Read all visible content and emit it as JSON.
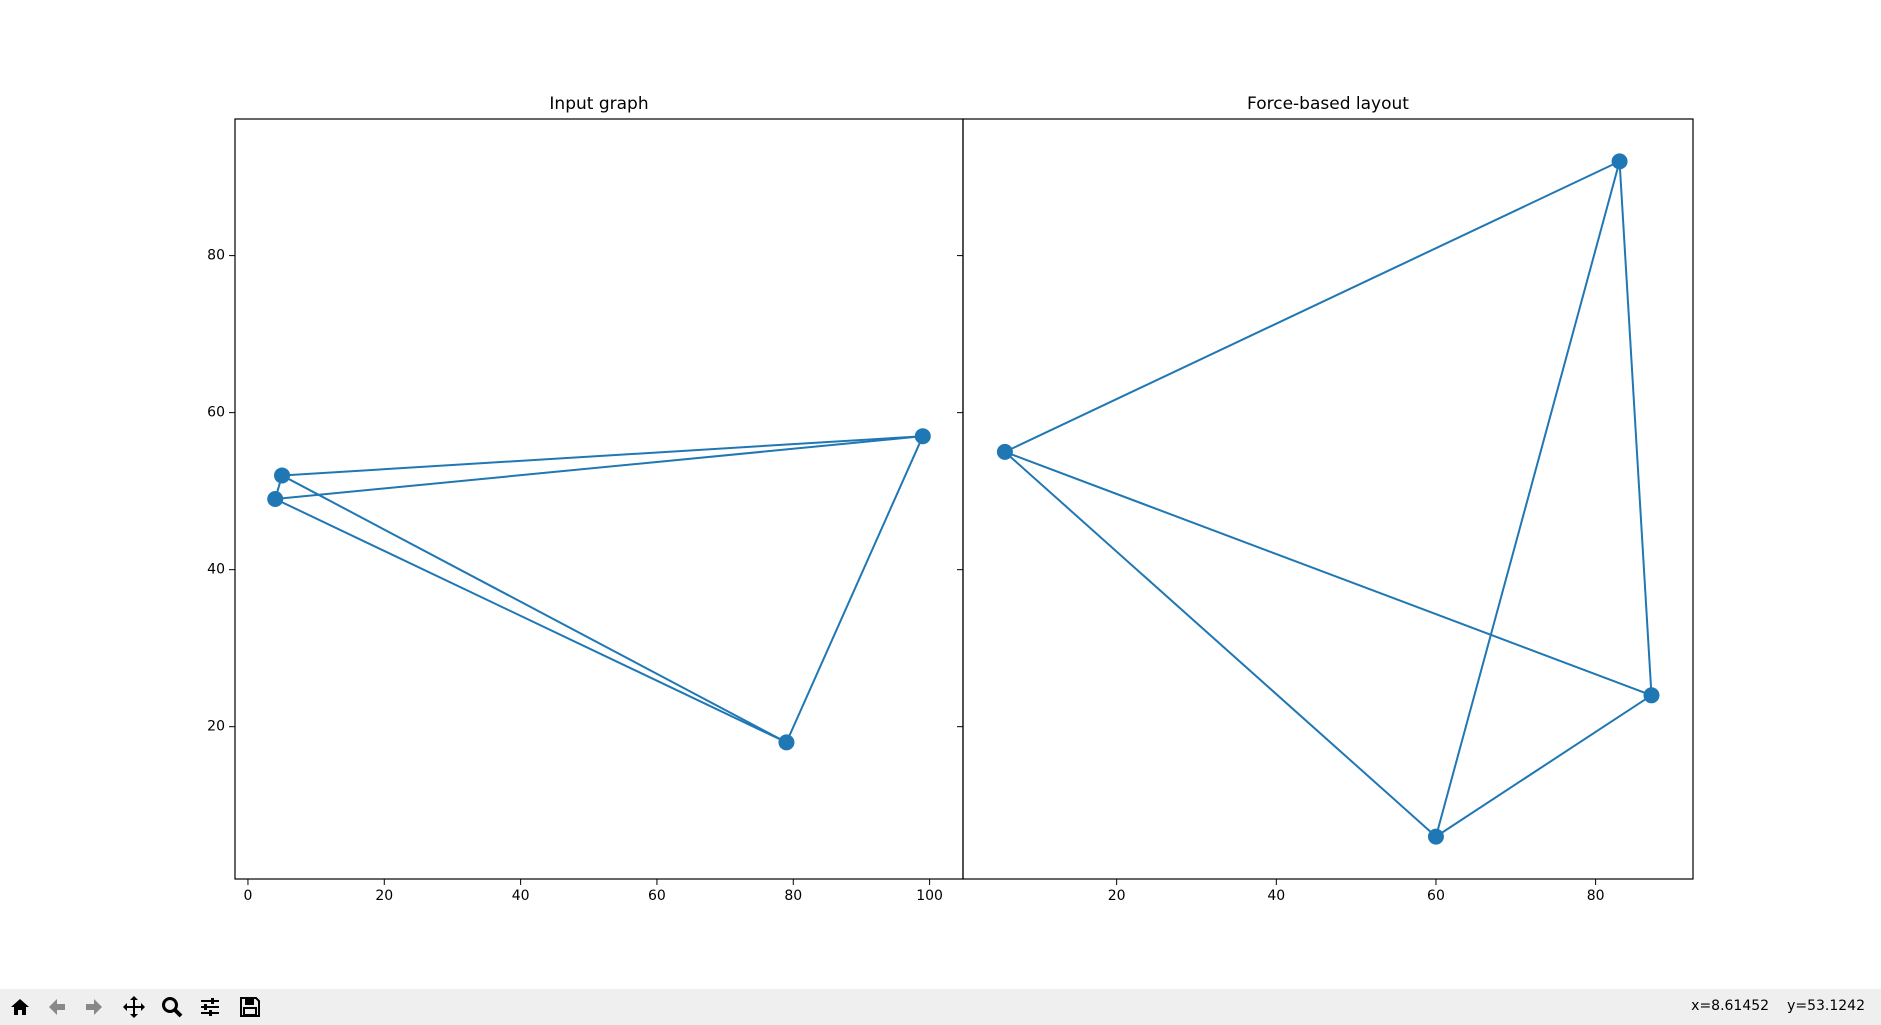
{
  "chart_data": [
    {
      "type": "graph",
      "title": "Input graph",
      "x": [
        5,
        4,
        99,
        79
      ],
      "y": [
        52,
        49,
        57,
        18
      ],
      "edges": [
        [
          0,
          2
        ],
        [
          1,
          2
        ],
        [
          1,
          3
        ],
        [
          0,
          3
        ],
        [
          2,
          3
        ],
        [
          0,
          1
        ]
      ],
      "color": "#1f77b4",
      "xlim": [
        -1.9,
        104.9
      ],
      "ylim": [
        0.6,
        97.4
      ],
      "xticks": [
        0,
        20,
        40,
        60,
        80,
        100
      ],
      "yticks": [
        20,
        40,
        60,
        80
      ]
    },
    {
      "type": "graph",
      "title": "Force-based layout",
      "x": [
        6,
        83,
        87,
        60
      ],
      "y": [
        55,
        92,
        24,
        6
      ],
      "edges": [
        [
          0,
          1
        ],
        [
          0,
          2
        ],
        [
          0,
          3
        ],
        [
          1,
          3
        ],
        [
          1,
          2
        ],
        [
          2,
          3
        ]
      ],
      "color": "#1f77b4",
      "xlim": [
        0.75,
        92.2
      ],
      "ylim": [
        0.6,
        97.4
      ],
      "xticks": [
        20,
        40,
        60,
        80
      ],
      "yticks": [
        20,
        40,
        60,
        80
      ]
    }
  ],
  "toolbar": {
    "status_x": "x=8.61452",
    "status_y": "y=53.1242"
  }
}
